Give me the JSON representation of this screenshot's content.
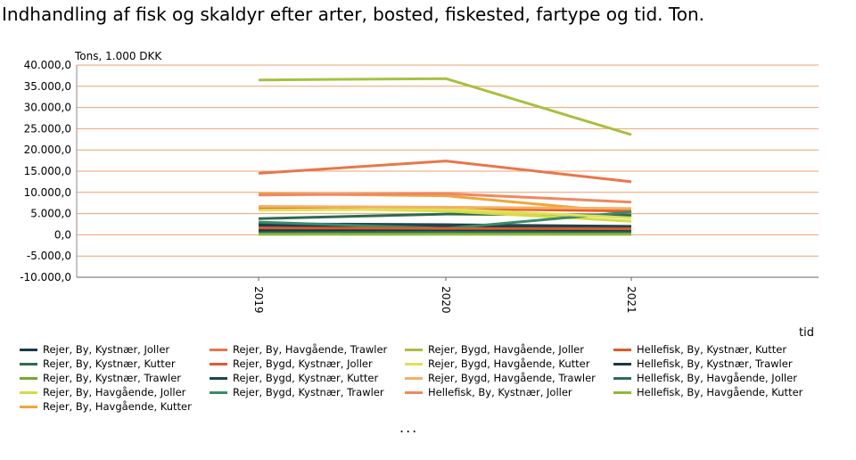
{
  "chart_data": {
    "type": "line",
    "title": "Indhandling af fisk og skaldyr efter arter, bosted, fiskested, fartype og tid. Ton.",
    "ylabel": "Tons, 1.000 DKK",
    "xlabel": "tid",
    "categories": [
      "2019",
      "2020",
      "2021"
    ],
    "ylim": [
      -10000,
      40000
    ],
    "yticks": [
      40000,
      35000,
      30000,
      25000,
      20000,
      15000,
      10000,
      5000,
      0,
      -5000,
      -10000
    ],
    "ytick_labels": [
      "40.000,0",
      "35.000,0",
      "30.000,0",
      "25.000,0",
      "20.000,0",
      "15.000,0",
      "10.000,0",
      "5.000,0",
      "0,0",
      "-5.000,0",
      "-10.000,0"
    ],
    "grid": true,
    "legend_position": "bottom",
    "more_indicator": "...",
    "series": [
      {
        "name": "Rejer, By, Kystnær, Joller",
        "color": "#1a3a4a",
        "values": [
          2200,
          2100,
          1900
        ]
      },
      {
        "name": "Rejer, By, Kystnær, Kutter",
        "color": "#2e6b4f",
        "values": [
          3800,
          4900,
          4600
        ]
      },
      {
        "name": "Rejer, By, Kystnær, Trawler",
        "color": "#7aa630",
        "values": [
          300,
          250,
          200
        ]
      },
      {
        "name": "Rejer, By, Havgående, Joller",
        "color": "#d4dc4a",
        "values": [
          6400,
          5600,
          3200
        ]
      },
      {
        "name": "Rejer, By, Havgående, Kutter",
        "color": "#f0a53a",
        "values": [
          9700,
          9200,
          5200
        ]
      },
      {
        "name": "Rejer, By, Havgående, Trawler",
        "color": "#e8764a",
        "values": [
          14500,
          17400,
          12500
        ]
      },
      {
        "name": "Rejer, Bygd, Kystnær, Joller",
        "color": "#e55a2a",
        "values": [
          6000,
          6200,
          5600
        ]
      },
      {
        "name": "Rejer, Bygd, Kystnær, Kutter",
        "color": "#1e4650",
        "values": [
          2600,
          2400,
          2000
        ]
      },
      {
        "name": "Rejer, Bygd, Kystnær, Trawler",
        "color": "#3a8a6a",
        "values": [
          3000,
          1500,
          5400
        ]
      },
      {
        "name": "Rejer, Bygd, Havgående, Joller",
        "color": "#a8c040",
        "values": [
          36500,
          36800,
          23600
        ]
      },
      {
        "name": "Rejer, Bygd, Havgående, Kutter",
        "color": "#e2e05a",
        "values": [
          5800,
          6100,
          4000
        ]
      },
      {
        "name": "Rejer, Bygd, Havgående, Trawler",
        "color": "#f4b060",
        "values": [
          6700,
          6500,
          6200
        ]
      },
      {
        "name": "Hellefisk, By, Kystnær, Joller",
        "color": "#ee8860",
        "values": [
          9400,
          9700,
          7700
        ]
      },
      {
        "name": "Hellefisk, By, Kystnær, Kutter",
        "color": "#e05a28",
        "values": [
          1600,
          1500,
          1400
        ]
      },
      {
        "name": "Hellefisk, By, Kystnær, Trawler",
        "color": "#183848",
        "values": [
          1000,
          900,
          800
        ]
      },
      {
        "name": "Hellefisk, By, Havgående, Joller",
        "color": "#2a7055",
        "values": [
          500,
          600,
          500
        ]
      },
      {
        "name": "Hellefisk, By, Havgående, Kutter",
        "color": "#90b838",
        "values": [
          100,
          150,
          100
        ]
      }
    ]
  }
}
